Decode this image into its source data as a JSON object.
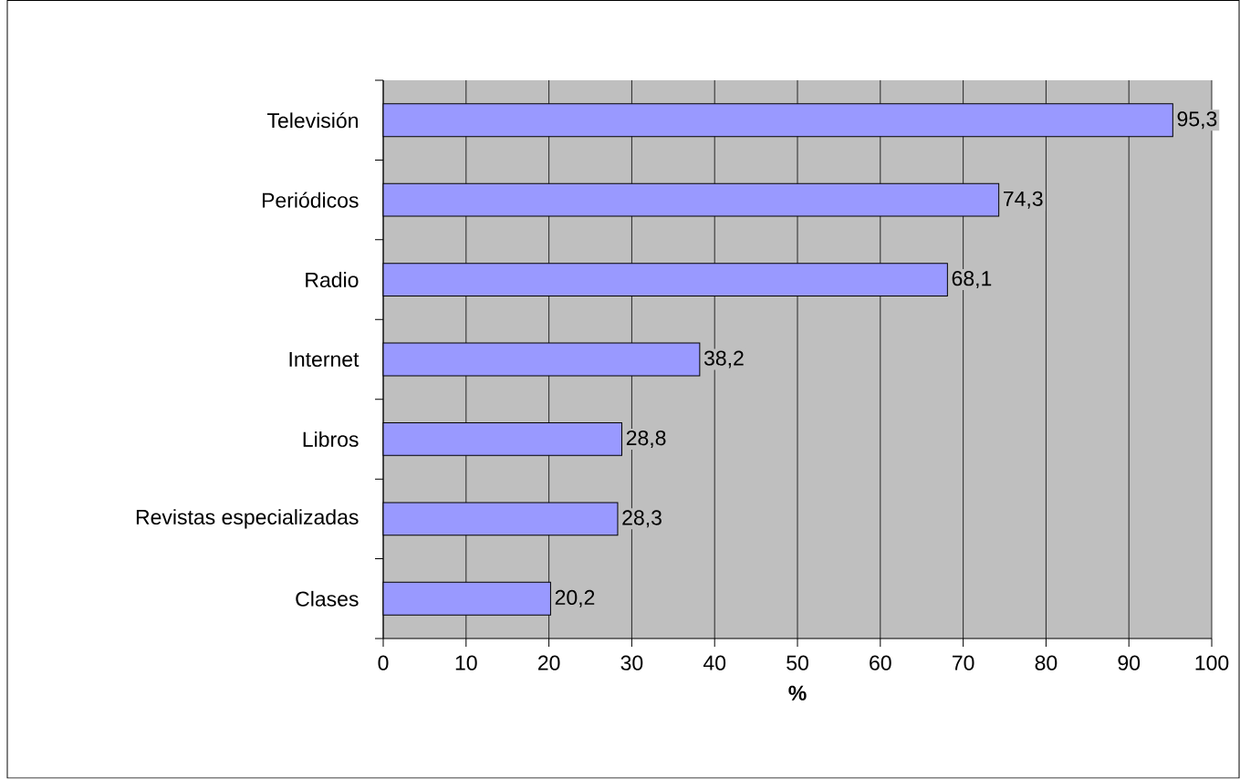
{
  "chart_data": {
    "type": "bar",
    "orientation": "horizontal",
    "xlabel": "%",
    "categories": [
      "Televisión",
      "Periódicos",
      "Radio",
      "Internet",
      "Libros",
      "Revistas especializadas",
      "Clases"
    ],
    "values": [
      95.3,
      74.3,
      68.1,
      38.2,
      28.8,
      28.3,
      20.2
    ],
    "value_labels": [
      "95,3",
      "74,3",
      "68,1",
      "38,2",
      "28,8",
      "28,3",
      "20,2"
    ],
    "color": "#9999ff",
    "xlim": [
      0,
      100
    ],
    "xticks": [
      0,
      10,
      20,
      30,
      40,
      50,
      60,
      70,
      80,
      90,
      100
    ],
    "grid": "x"
  }
}
